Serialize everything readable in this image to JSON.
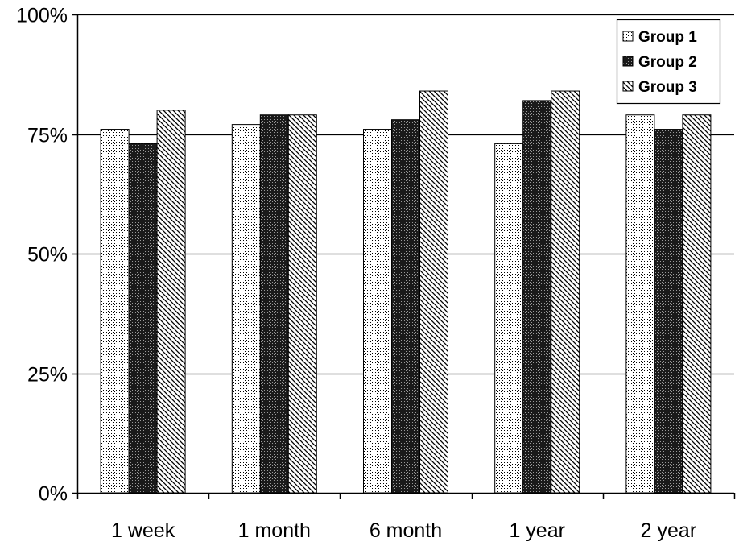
{
  "chart_data": {
    "type": "bar",
    "title": "",
    "xlabel": "",
    "ylabel": "",
    "categories": [
      "1 week",
      "1 month",
      "6 month",
      "1 year",
      "2 year"
    ],
    "series": [
      {
        "name": "Group 1",
        "values": [
          76,
          77,
          76,
          73,
          79
        ],
        "pattern": "dots"
      },
      {
        "name": "Group 2",
        "values": [
          73,
          79,
          78,
          82,
          76
        ],
        "pattern": "dense-crosshatch"
      },
      {
        "name": "Group 3",
        "values": [
          80,
          79,
          84,
          84,
          79
        ],
        "pattern": "diagonal-stripes"
      }
    ],
    "ylim": [
      0,
      100
    ],
    "yticks": [
      0,
      25,
      50,
      75,
      100
    ],
    "ytick_labels": [
      "0%",
      "25%",
      "50%",
      "75%",
      "100%"
    ],
    "grid": "horizontal",
    "legend_position": "top-right",
    "colors": {
      "background": "#ffffff",
      "grid": "#000000",
      "bar_outline": "#000000"
    }
  }
}
